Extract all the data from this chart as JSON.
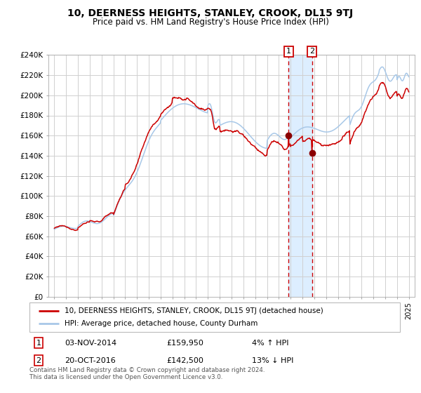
{
  "title": "10, DEERNESS HEIGHTS, STANLEY, CROOK, DL15 9TJ",
  "subtitle": "Price paid vs. HM Land Registry's House Price Index (HPI)",
  "legend_line1": "10, DEERNESS HEIGHTS, STANLEY, CROOK, DL15 9TJ (detached house)",
  "legend_line2": "HPI: Average price, detached house, County Durham",
  "transaction1_date": "03-NOV-2014",
  "transaction1_price": "£159,950",
  "transaction1_hpi": "4% ↑ HPI",
  "transaction1_year": 2014.84,
  "transaction1_value": 159950,
  "transaction2_date": "20-OCT-2016",
  "transaction2_price": "£142,500",
  "transaction2_hpi": "13% ↓ HPI",
  "transaction2_year": 2016.8,
  "transaction2_value": 142500,
  "copyright": "Contains HM Land Registry data © Crown copyright and database right 2024.\nThis data is licensed under the Open Government Licence v3.0.",
  "ylim": [
    0,
    240000
  ],
  "yticks": [
    0,
    20000,
    40000,
    60000,
    80000,
    100000,
    120000,
    140000,
    160000,
    180000,
    200000,
    220000,
    240000
  ],
  "hpi_color": "#a8c8e8",
  "price_color": "#cc0000",
  "dot_color": "#8b0000",
  "grid_color": "#d0d0d0",
  "highlight_color": "#ddeeff",
  "vline_color": "#cc0000",
  "xlim_left": 1994.5,
  "xlim_right": 2025.5
}
